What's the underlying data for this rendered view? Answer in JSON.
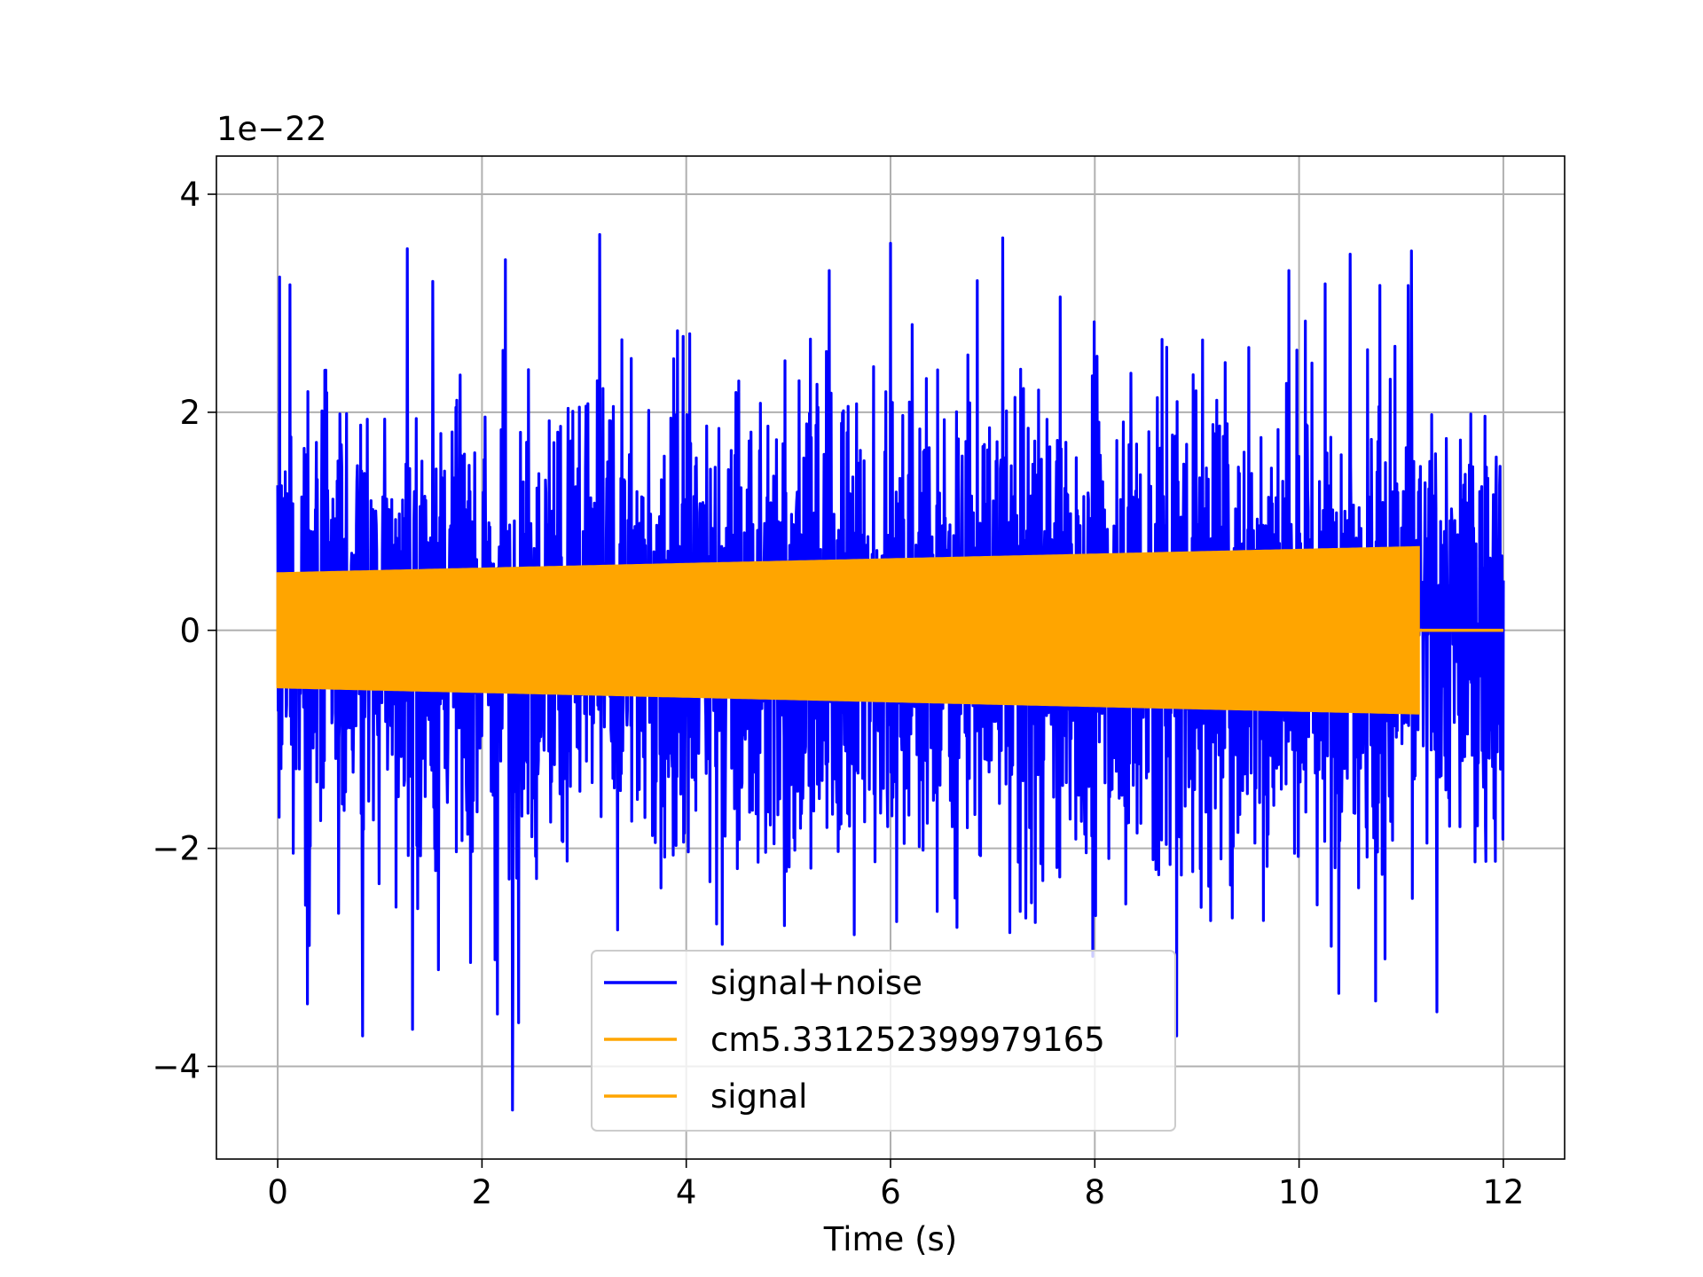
{
  "chart_data": {
    "type": "line",
    "title": "",
    "xlabel": "Time (s)",
    "ylabel": "",
    "y_offset_label": "1e−22",
    "y_scale_factor": 1e-22,
    "xlim": [
      -0.6,
      12.6
    ],
    "ylim": [
      -4.85,
      4.35
    ],
    "grid": true,
    "legend_position": "lower center",
    "x_ticks": [
      0,
      2,
      4,
      6,
      8,
      10,
      12
    ],
    "x_tick_labels": [
      "0",
      "2",
      "4",
      "6",
      "8",
      "10",
      "12"
    ],
    "y_ticks": [
      -4,
      -2,
      0,
      2,
      4
    ],
    "y_tick_labels": [
      "−4",
      "−2",
      "0",
      "2",
      "4"
    ],
    "colors": {
      "noise": "#0000ff",
      "signal": "#ffa500",
      "grid": "#b0b0b0",
      "axes": "#000000"
    },
    "series": [
      {
        "name": "signal+noise",
        "color": "#0000ff",
        "description_values": {
          "t_start": 0,
          "t_end": 12.0,
          "typical_envelope": 1.9,
          "max_peak": 3.93,
          "max_peak_time": 10.75,
          "min_trough": -4.4,
          "min_trough_time": 2.3
        },
        "spike_peaks": [
          {
            "t": 0.12,
            "v": 3.17
          },
          {
            "t": 1.27,
            "v": 3.5
          },
          {
            "t": 1.52,
            "v": 3.2
          },
          {
            "t": 2.23,
            "v": 3.4
          },
          {
            "t": 3.15,
            "v": 3.63
          },
          {
            "t": 5.4,
            "v": 3.3
          },
          {
            "t": 6.0,
            "v": 3.55
          },
          {
            "t": 7.1,
            "v": 3.6
          },
          {
            "t": 9.9,
            "v": 3.3
          },
          {
            "t": 10.5,
            "v": 3.45
          },
          {
            "t": 10.75,
            "v": 3.93
          },
          {
            "t": 11.1,
            "v": 3.48
          }
        ],
        "spike_troughs": [
          {
            "t": 0.83,
            "v": -3.72
          },
          {
            "t": 1.32,
            "v": -3.66
          },
          {
            "t": 2.15,
            "v": -3.52
          },
          {
            "t": 2.3,
            "v": -4.4
          },
          {
            "t": 2.36,
            "v": -3.6
          },
          {
            "t": 8.8,
            "v": -3.72
          },
          {
            "t": 10.75,
            "v": -3.4
          },
          {
            "t": 11.35,
            "v": -3.5
          }
        ]
      },
      {
        "name": "cm5.331252399979165",
        "color": "#ffa500",
        "description_values": {
          "t_start": 0,
          "t_end": 11.17,
          "amplitude_start": 0.52,
          "amplitude_end": 0.76
        }
      },
      {
        "name": "signal",
        "color": "#ffa500",
        "description_values": {
          "t_start": 0,
          "t_end": 12.0,
          "amplitude_start": 0.52,
          "amplitude_end": 0.76,
          "zero_after": 11.17
        }
      }
    ]
  }
}
